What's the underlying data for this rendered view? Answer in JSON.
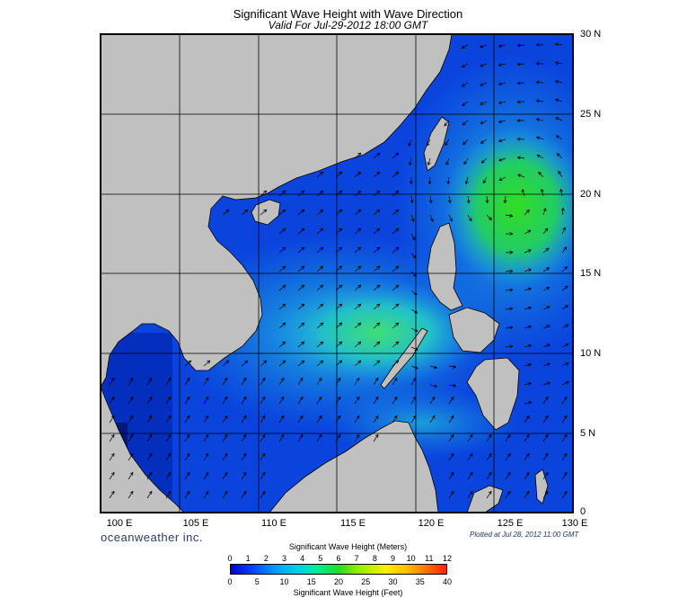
{
  "title": "Significant Wave Height with Wave Direction",
  "subtitle": "Valid For Jul-29-2012 18:00 GMT",
  "map": {
    "lon_range": [
      100,
      130
    ],
    "lat_range": [
      0,
      30
    ],
    "lat_labels": [
      "30 N",
      "25 N",
      "20 N",
      "15 N",
      "10 N",
      "5 N",
      "0"
    ],
    "lon_labels": [
      "100 E",
      "105 E",
      "110 E",
      "115 E",
      "120 E",
      "125 E",
      "130 E"
    ],
    "colors": {
      "land": "#c0c0c0",
      "sea_low": "#0a3ccc",
      "sea_mid": "#1aa0e8",
      "sea_high": "#22dd44",
      "grid": "#000000"
    }
  },
  "brand": "oceanweather inc.",
  "plotted": "Plotted at Jul 28, 2012 11:00 GMT",
  "scale": {
    "meters_title": "Significant Wave Height (Meters)",
    "feet_title": "Significant Wave Height (Feet)",
    "meters_ticks": [
      "0",
      "1",
      "2",
      "3",
      "4",
      "5",
      "6",
      "7",
      "8",
      "9",
      "10",
      "11",
      "12"
    ],
    "feet_ticks": [
      "0",
      "5",
      "10",
      "15",
      "20",
      "25",
      "30",
      "35",
      "40"
    ]
  }
}
